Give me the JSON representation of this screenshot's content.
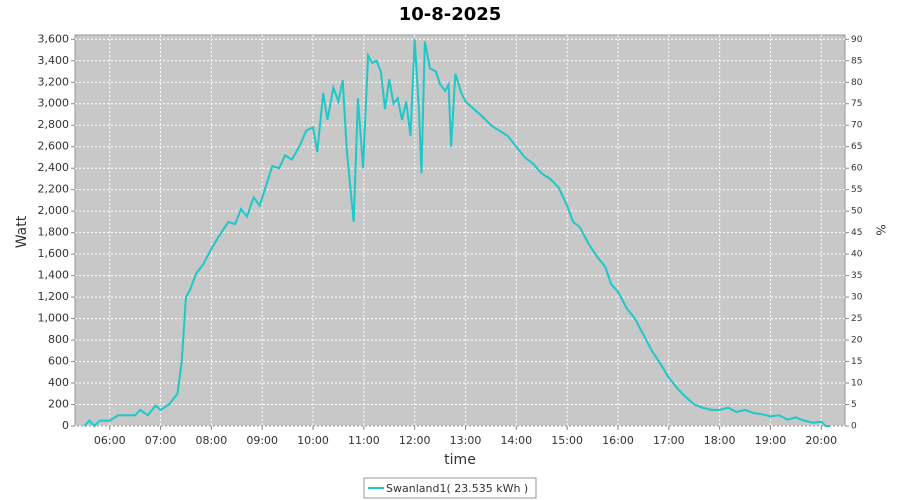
{
  "chart_data": {
    "type": "line",
    "title": "10-8-2025",
    "x_label": "time",
    "y_label": "Watt",
    "y2_label": "%",
    "x": [
      "05:30",
      "05:36",
      "05:42",
      "05:48",
      "06:00",
      "06:10",
      "06:20",
      "06:30",
      "06:36",
      "06:45",
      "06:54",
      "07:00",
      "07:10",
      "07:20",
      "07:25",
      "07:30",
      "07:35",
      "07:42",
      "07:50",
      "08:00",
      "08:10",
      "08:20",
      "08:28",
      "08:35",
      "08:42",
      "08:50",
      "08:57",
      "09:05",
      "09:12",
      "09:20",
      "09:27",
      "09:35",
      "09:45",
      "09:52",
      "10:00",
      "10:05",
      "10:12",
      "10:17",
      "10:24",
      "10:30",
      "10:35",
      "10:40",
      "10:48",
      "10:53",
      "10:59",
      "11:05",
      "11:10",
      "11:15",
      "11:20",
      "11:25",
      "11:30",
      "11:35",
      "11:40",
      "11:45",
      "11:50",
      "11:55",
      "12:00",
      "12:05",
      "12:08",
      "12:12",
      "12:18",
      "12:25",
      "12:30",
      "12:36",
      "12:40",
      "12:43",
      "12:48",
      "12:55",
      "13:00",
      "13:10",
      "13:20",
      "13:30",
      "13:40",
      "13:50",
      "14:00",
      "14:10",
      "14:20",
      "14:30",
      "14:40",
      "14:50",
      "15:00",
      "15:07",
      "15:15",
      "15:25",
      "15:35",
      "15:45",
      "15:52",
      "16:00",
      "16:10",
      "16:20",
      "16:30",
      "16:40",
      "16:50",
      "17:00",
      "17:10",
      "17:20",
      "17:30",
      "17:40",
      "17:50",
      "18:00",
      "18:10",
      "18:20",
      "18:30",
      "18:40",
      "18:50",
      "19:00",
      "19:10",
      "19:20",
      "19:30",
      "19:40",
      "19:50",
      "20:00",
      "20:05",
      "20:10"
    ],
    "series": [
      {
        "name": "Swanland1( 23.535 kWh )",
        "color": "#1ec8c8",
        "values": [
          0,
          50,
          0,
          50,
          50,
          100,
          100,
          100,
          150,
          100,
          190,
          150,
          200,
          300,
          600,
          1200,
          1270,
          1420,
          1500,
          1650,
          1780,
          1900,
          1880,
          2020,
          1950,
          2130,
          2050,
          2250,
          2420,
          2400,
          2520,
          2480,
          2620,
          2750,
          2780,
          2550,
          3100,
          2850,
          3150,
          3020,
          3220,
          2550,
          1900,
          3050,
          2400,
          3450,
          3380,
          3400,
          3300,
          2950,
          3230,
          3000,
          3050,
          2850,
          3020,
          2700,
          3600,
          2950,
          2350,
          3580,
          3330,
          3300,
          3180,
          3120,
          3180,
          2600,
          3280,
          3100,
          3020,
          2950,
          2880,
          2800,
          2750,
          2700,
          2600,
          2500,
          2440,
          2350,
          2300,
          2220,
          2050,
          1900,
          1850,
          1700,
          1580,
          1480,
          1320,
          1250,
          1100,
          1000,
          850,
          700,
          580,
          450,
          350,
          270,
          200,
          170,
          150,
          150,
          170,
          130,
          150,
          120,
          110,
          90,
          100,
          60,
          80,
          50,
          30,
          40,
          0,
          0
        ]
      }
    ],
    "xlim": [
      "05:19",
      "20:28"
    ],
    "xticks": [
      "06:00",
      "07:00",
      "08:00",
      "09:00",
      "10:00",
      "11:00",
      "12:00",
      "13:00",
      "14:00",
      "15:00",
      "16:00",
      "17:00",
      "18:00",
      "19:00",
      "20:00"
    ],
    "ylim": [
      0,
      3640
    ],
    "yticks": [
      0,
      200,
      400,
      600,
      800,
      {
        "value": 1000,
        "label": "1,000"
      },
      {
        "value": 1200,
        "label": "1,200"
      },
      {
        "value": 1400,
        "label": "1,400"
      },
      {
        "value": 1600,
        "label": "1,600"
      },
      {
        "value": 1800,
        "label": "1,800"
      },
      {
        "value": 2000,
        "label": "2,000"
      },
      {
        "value": 2200,
        "label": "2,200"
      },
      {
        "value": 2400,
        "label": "2,400"
      },
      {
        "value": 2600,
        "label": "2,600"
      },
      {
        "value": 2800,
        "label": "2,800"
      },
      {
        "value": 3000,
        "label": "3,000"
      },
      {
        "value": 3200,
        "label": "3,200"
      },
      {
        "value": 3400,
        "label": "3,400"
      },
      {
        "value": 3600,
        "label": "3,600"
      }
    ],
    "y2lim": [
      0,
      91
    ],
    "y2ticks": [
      0,
      5,
      10,
      15,
      20,
      25,
      30,
      35,
      40,
      45,
      50,
      55,
      60,
      65,
      70,
      75,
      80,
      85,
      90
    ],
    "grid": true,
    "legend": "bottom"
  }
}
